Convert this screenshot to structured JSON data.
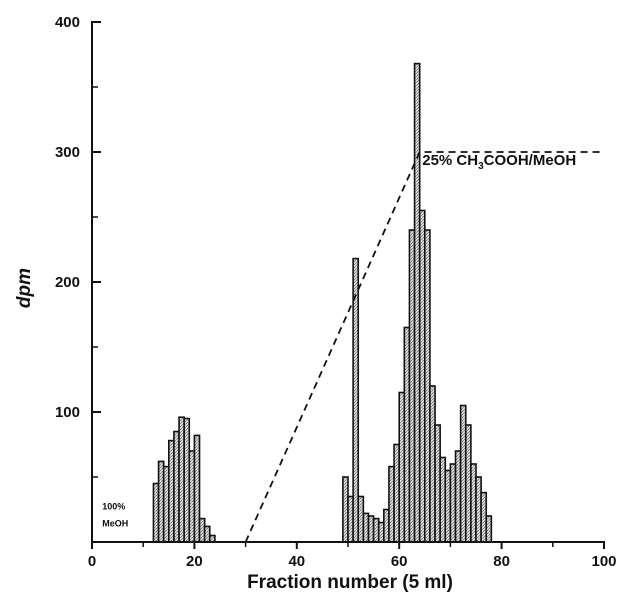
{
  "chart_data": {
    "type": "bar",
    "xlabel": "Fraction number (5 ml)",
    "ylabel": "dpm",
    "xlim": [
      0,
      100
    ],
    "ylim": [
      0,
      400
    ],
    "xticks": [
      0,
      20,
      40,
      60,
      80,
      100
    ],
    "yticks": [
      100,
      200,
      300,
      400
    ],
    "xtick_labels": [
      "0",
      "20",
      "40",
      "60",
      "80",
      "100"
    ],
    "ytick_labels": [
      "100",
      "200",
      "300",
      "400"
    ],
    "grid": false,
    "fill_color": "#c8c8c8",
    "edge_color": "#111111",
    "bin_width": 1,
    "series": [
      {
        "x": [
          12,
          13,
          14,
          15,
          16,
          17,
          18,
          19,
          20,
          21,
          22,
          23
        ],
        "values": [
          45,
          62,
          58,
          78,
          85,
          96,
          95,
          70,
          82,
          18,
          12,
          5
        ]
      },
      {
        "x": [
          49,
          50,
          51,
          52,
          53,
          54,
          55,
          56,
          57,
          58,
          59,
          60,
          61,
          62,
          63,
          64,
          65,
          66,
          67,
          68,
          69,
          70,
          71,
          72,
          73,
          74,
          75,
          76,
          77
        ],
        "values": [
          50,
          35,
          218,
          35,
          22,
          20,
          18,
          15,
          25,
          58,
          75,
          115,
          165,
          240,
          368,
          255,
          240,
          120,
          90,
          65,
          55,
          60,
          70,
          105,
          90,
          60,
          50,
          38,
          20
        ]
      }
    ],
    "gradient": {
      "x": [
        30,
        64,
        100
      ],
      "y": [
        0,
        300,
        300
      ],
      "style": "dashed"
    },
    "annotations": [
      {
        "text": "25% CH3COOH/MeOH",
        "x": 64.5,
        "y": 290
      },
      {
        "text": "100%",
        "x": 2,
        "y": 25
      },
      {
        "text": "MeOH",
        "x": 2,
        "y": 12
      }
    ]
  }
}
